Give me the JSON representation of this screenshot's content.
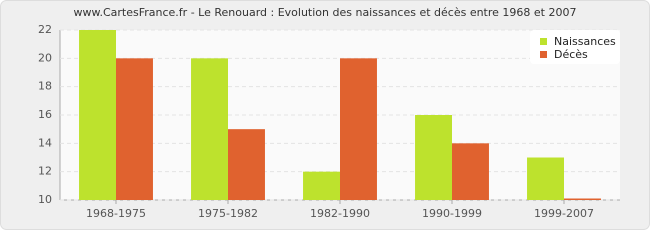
{
  "chart_data": {
    "type": "bar",
    "title": "www.CartesFrance.fr - Le Renouard : Evolution des naissances et décès entre 1968 et 2007",
    "categories": [
      "1968-1975",
      "1975-1982",
      "1982-1990",
      "1990-1999",
      "1999-2007"
    ],
    "series": [
      {
        "name": "Naissances",
        "color": "#bde22d",
        "values": [
          22,
          20,
          12,
          16,
          13
        ]
      },
      {
        "name": "Décès",
        "color": "#e0622f",
        "values": [
          20,
          15,
          20,
          14,
          10
        ]
      }
    ],
    "ylim": [
      10,
      22
    ],
    "yticks": [
      10,
      12,
      14,
      16,
      18,
      20,
      22
    ],
    "grid": true,
    "legend": "top-right"
  }
}
